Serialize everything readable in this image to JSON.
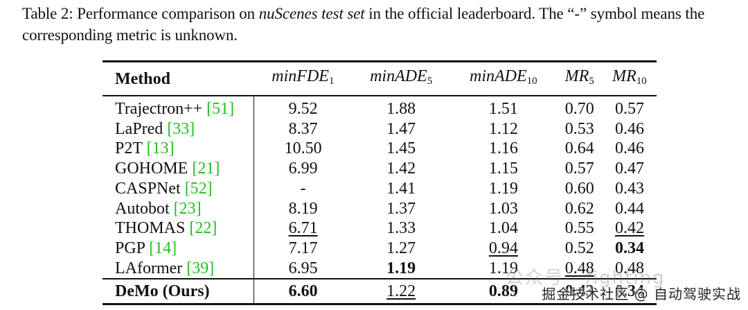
{
  "caption": {
    "prefix": "Table 2: Performance comparison on ",
    "emph": "nuScenes test set",
    "suffix": " in the official leaderboard. The “-” symbol means the corresponding metric is unknown."
  },
  "table": {
    "header": {
      "method": "Method",
      "c1": {
        "base": "minFDE",
        "sub": "1"
      },
      "c2": {
        "base": "minADE",
        "sub": "5"
      },
      "c3": {
        "base": "minADE",
        "sub": "10"
      },
      "c4": {
        "base": "MR",
        "sub": "5"
      },
      "c5": {
        "base": "MR",
        "sub": "10"
      }
    },
    "rows": [
      {
        "name": "Trajectron++ ",
        "ref": "[51]",
        "v": [
          "9.52",
          "1.88",
          "1.51",
          "0.70",
          "0.57"
        ]
      },
      {
        "name": "LaPred ",
        "ref": "[33]",
        "v": [
          "8.37",
          "1.47",
          "1.12",
          "0.53",
          "0.46"
        ]
      },
      {
        "name": "P2T ",
        "ref": "[13]",
        "v": [
          "10.50",
          "1.45",
          "1.16",
          "0.64",
          "0.46"
        ]
      },
      {
        "name": "GOHOME ",
        "ref": "[21]",
        "v": [
          "6.99",
          "1.42",
          "1.15",
          "0.57",
          "0.47"
        ]
      },
      {
        "name": "CASPNet ",
        "ref": "[52]",
        "v": [
          "-",
          "1.41",
          "1.19",
          "0.60",
          "0.43"
        ]
      },
      {
        "name": "Autobot ",
        "ref": "[23]",
        "v": [
          "8.19",
          "1.37",
          "1.03",
          "0.62",
          "0.44"
        ]
      },
      {
        "name": "THOMAS ",
        "ref": "[22]",
        "v": [
          "6.71",
          "1.33",
          "1.04",
          "0.55",
          "0.42"
        ]
      },
      {
        "name": "PGP ",
        "ref": "[14]",
        "v": [
          "7.17",
          "1.27",
          "0.94",
          "0.52",
          "0.34"
        ]
      },
      {
        "name": "LAformer ",
        "ref": "[39]",
        "v": [
          "6.95",
          "1.19",
          "1.19",
          "0.48",
          "0.48"
        ]
      }
    ],
    "ours": {
      "name": "DeMo (Ours)",
      "v": [
        "6.60",
        "1.22",
        "0.89",
        "0.43",
        "0.34"
      ]
    }
  },
  "watermark": {
    "text": "掘金技术社区 @ 自动驾驶实战",
    "faint": "公众号 · fighting"
  }
}
